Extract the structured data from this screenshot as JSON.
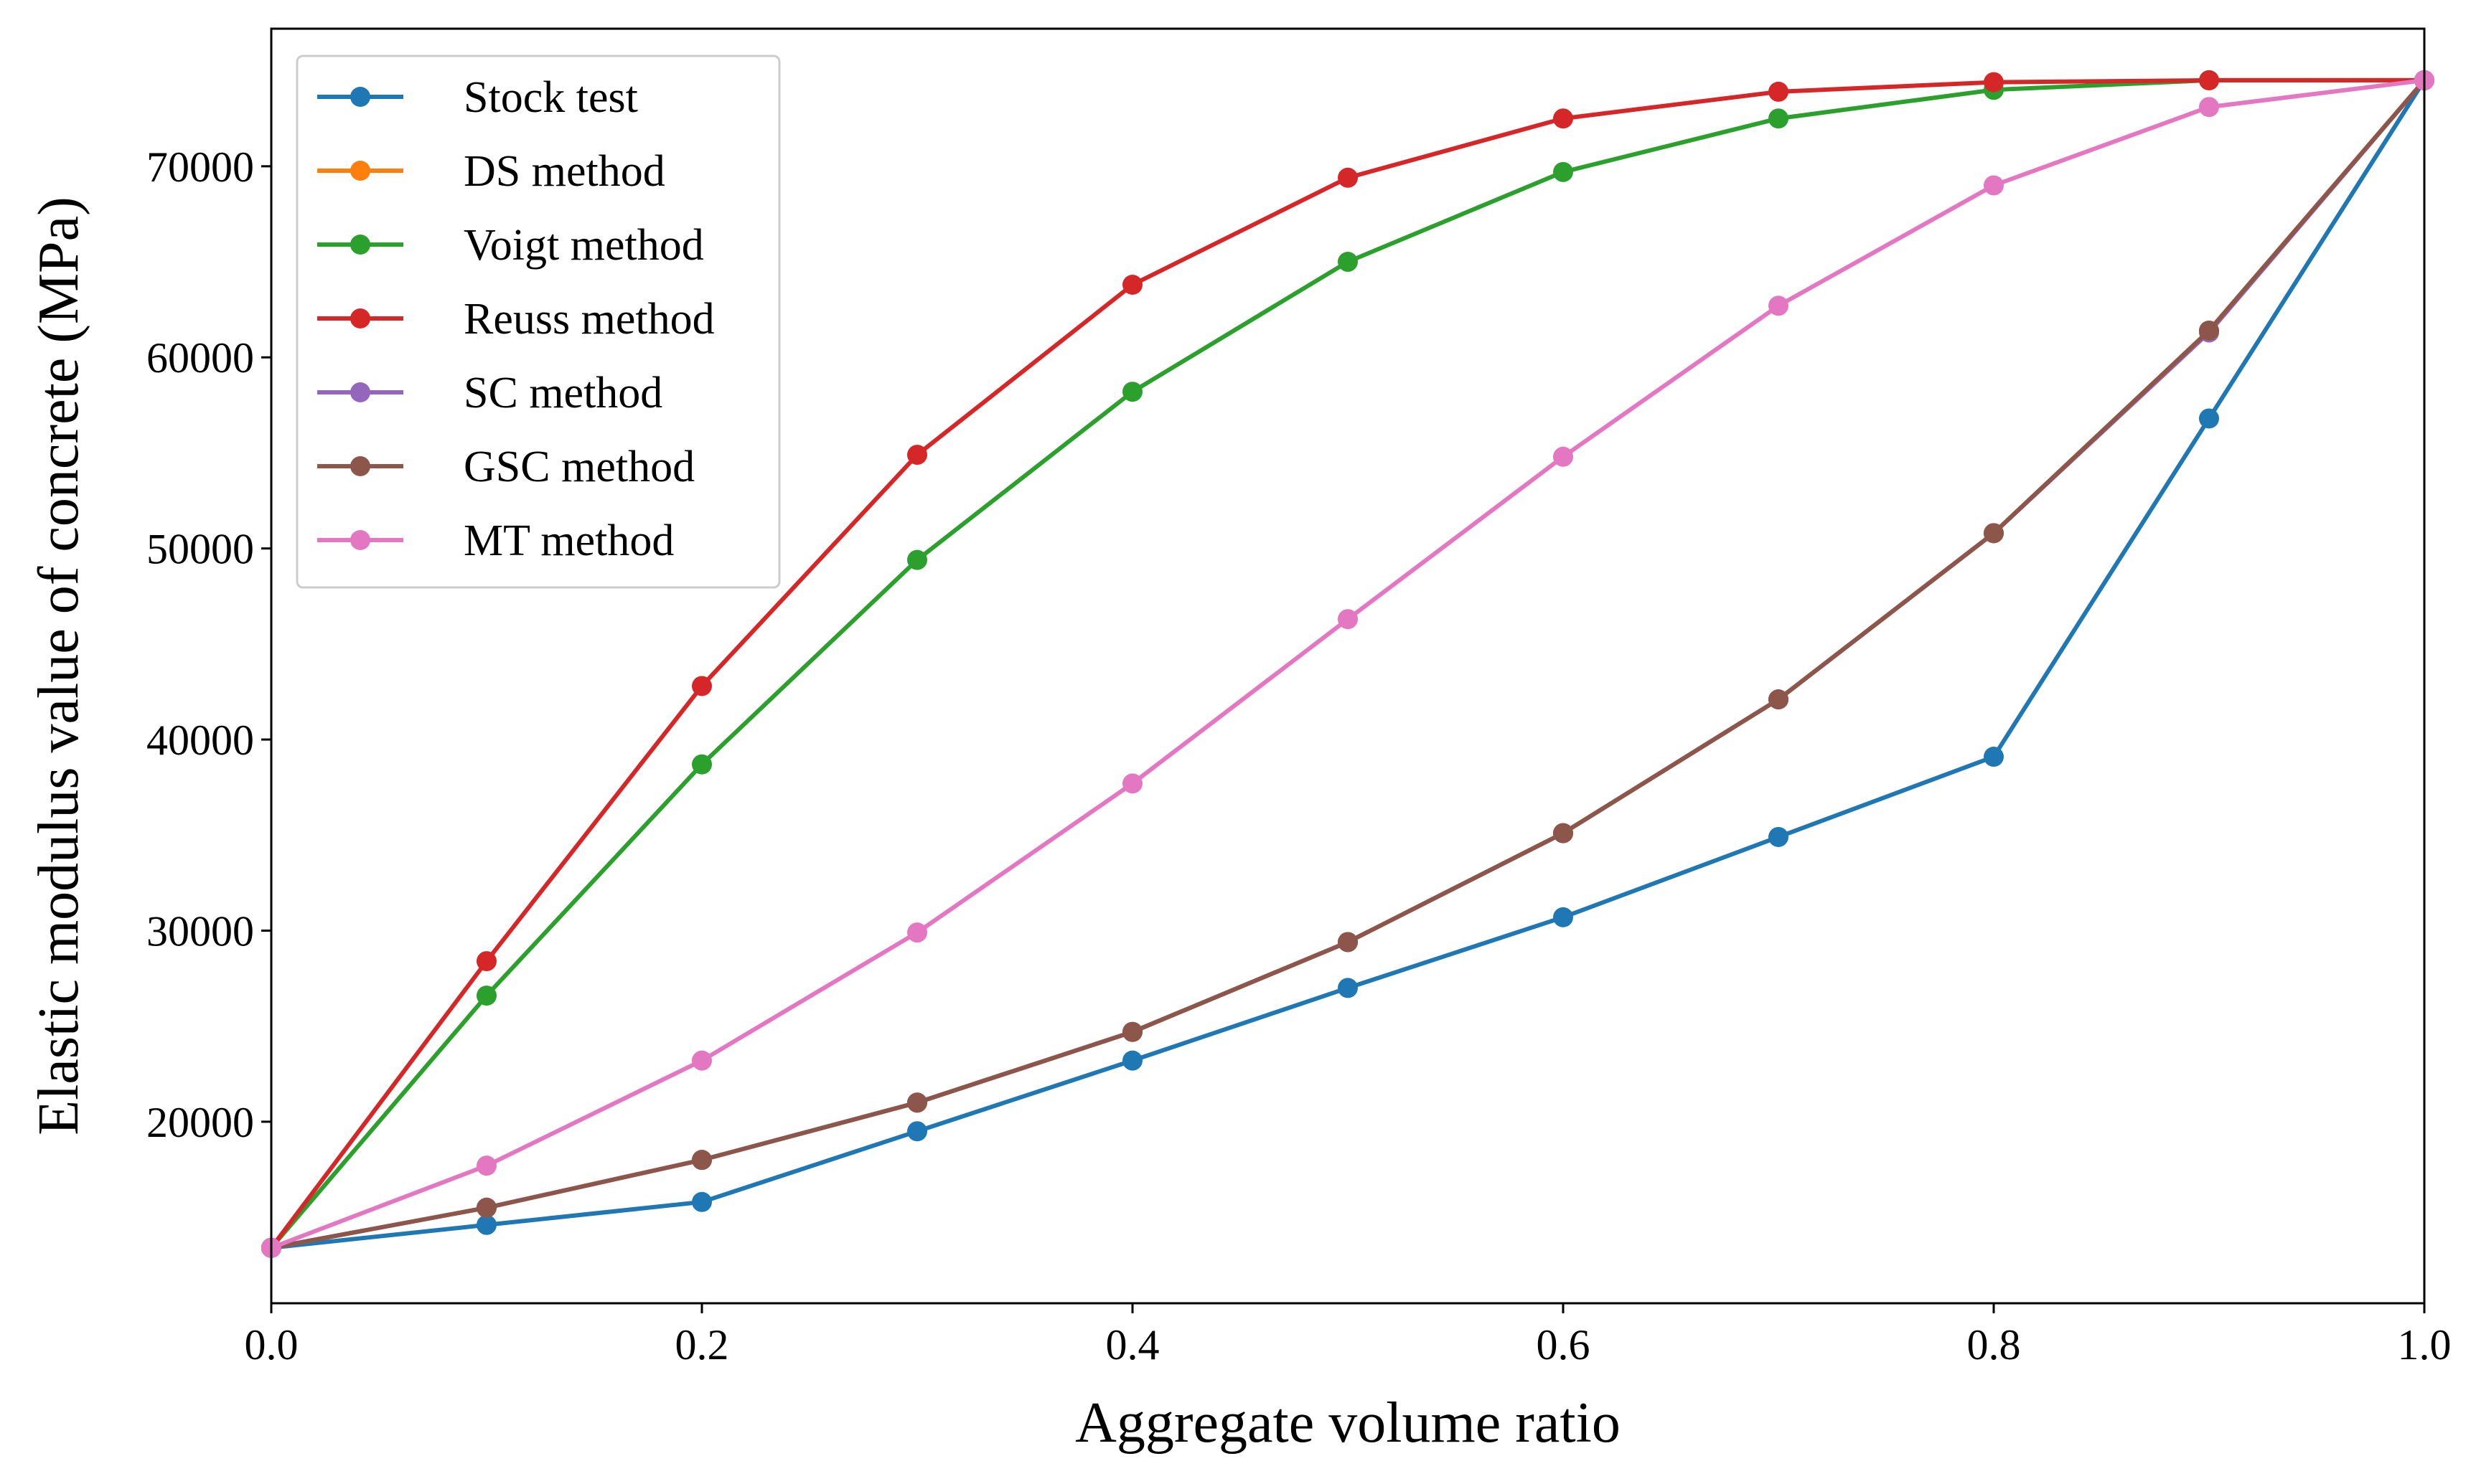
{
  "chart_data": {
    "type": "line",
    "title": "",
    "xlabel": "Aggregate volume ratio",
    "ylabel": "Elastic modulus value of concrete (MPa)",
    "xlim": [
      0.0,
      1.0
    ],
    "ylim": [
      10500,
      77200
    ],
    "grid": false,
    "legend_position": "top-left",
    "x": [
      0.0,
      0.1,
      0.2,
      0.3,
      0.4,
      0.5,
      0.6,
      0.7,
      0.8,
      0.9,
      1.0
    ],
    "x_ticks": [
      "0.0",
      "0.2",
      "0.4",
      "0.6",
      "0.8",
      "1.0"
    ],
    "x_tick_values": [
      0.0,
      0.2,
      0.4,
      0.6,
      0.8,
      1.0
    ],
    "y_ticks": [
      "20000",
      "30000",
      "40000",
      "50000",
      "60000",
      "70000"
    ],
    "y_tick_values": [
      20000,
      30000,
      40000,
      50000,
      60000,
      70000
    ],
    "series": [
      {
        "name": "Stock test",
        "color": "#1f77b4",
        "values": [
          13400,
          14600,
          15800,
          19500,
          23200,
          27000,
          30700,
          34900,
          39100,
          56800,
          74500
        ]
      },
      {
        "name": "DS method",
        "color": "#ff7f0e",
        "values": [
          13400,
          15500,
          18000,
          21000,
          24700,
          29400,
          35100,
          42100,
          50800,
          61400,
          74500
        ]
      },
      {
        "name": "Voigt method",
        "color": "#2ca02c",
        "values": [
          13400,
          26600,
          38700,
          49400,
          58200,
          65000,
          69700,
          72500,
          74000,
          74500,
          74500
        ]
      },
      {
        "name": "Reuss method",
        "color": "#d62728",
        "values": [
          13400,
          28400,
          42800,
          54900,
          63800,
          69400,
          72500,
          73900,
          74400,
          74500,
          74500
        ]
      },
      {
        "name": "SC method",
        "color": "#9467bd",
        "values": [
          13400,
          15500,
          18000,
          21000,
          24700,
          29400,
          35100,
          42100,
          50800,
          61300,
          74500
        ]
      },
      {
        "name": "GSC method",
        "color": "#8c564b",
        "values": [
          13400,
          15500,
          18000,
          21000,
          24700,
          29400,
          35100,
          42100,
          50800,
          61400,
          74500
        ]
      },
      {
        "name": "MT method",
        "color": "#e377c2",
        "values": [
          13400,
          17700,
          23200,
          29900,
          37700,
          46300,
          54800,
          62700,
          69000,
          73100,
          74500
        ]
      }
    ]
  }
}
